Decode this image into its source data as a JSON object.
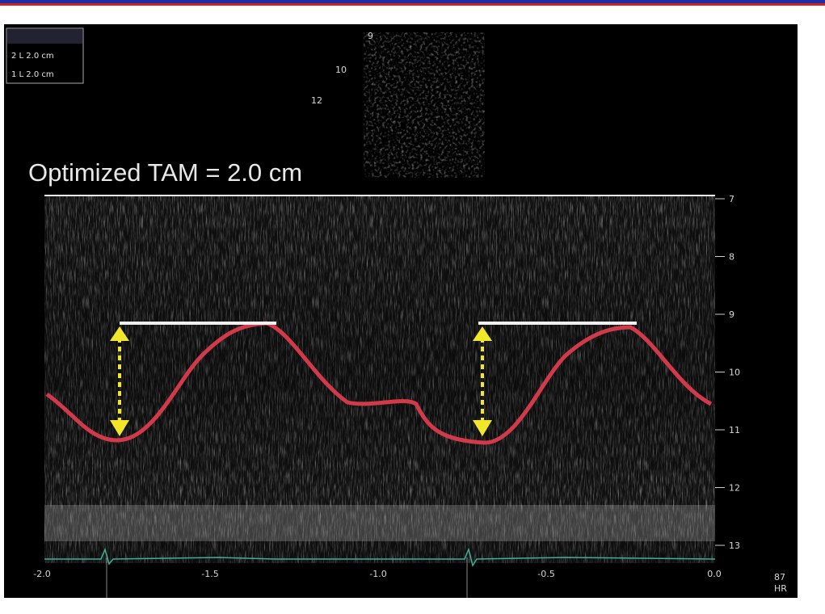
{
  "image": {
    "annotation": "Optimized TAM = 2.0 cm",
    "info_box": [
      "2 L 2.0 cm",
      "1 L 2.0 cm"
    ],
    "sector_labels": [
      "9",
      "10",
      "12"
    ],
    "depth_labels": [
      "7",
      "8",
      "9",
      "10",
      "11",
      "12",
      "13"
    ],
    "time_labels": [
      "-2.0",
      "-1.5",
      "-1.0",
      "-0.5",
      "0.0"
    ],
    "heart_rate_value": "87",
    "heart_rate_label": "HR"
  }
}
